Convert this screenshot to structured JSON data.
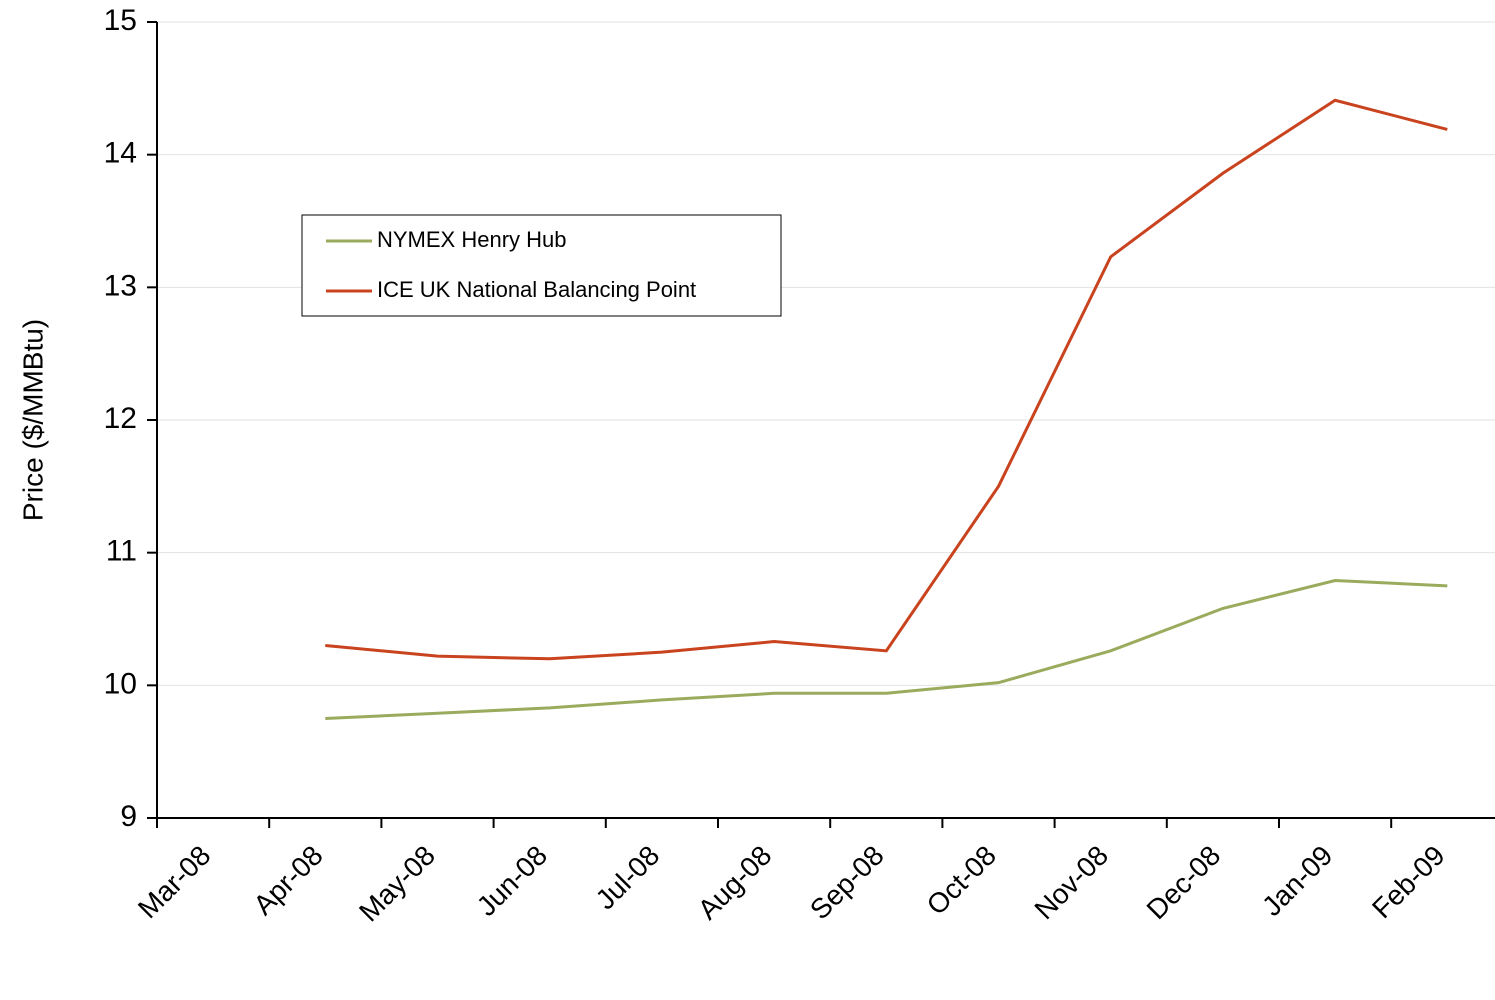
{
  "chart_data": {
    "type": "line",
    "y_label": "Price ($/MMBtu)",
    "categories": [
      "Mar-08",
      "Apr-08",
      "May-08",
      "Jun-08",
      "Jul-08",
      "Aug-08",
      "Sep-08",
      "Oct-08",
      "Nov-08",
      "Dec-08",
      "Jan-09",
      "Feb-09"
    ],
    "series": [
      {
        "name": "NYMEX Henry Hub",
        "color": "#9bab5d",
        "values": [
          null,
          9.75,
          9.79,
          9.83,
          9.89,
          9.94,
          9.94,
          10.02,
          10.26,
          10.58,
          10.79,
          10.75
        ]
      },
      {
        "name": "ICE UK National Balancing Point",
        "color": "#c8431e",
        "values": [
          null,
          10.3,
          10.22,
          10.2,
          10.25,
          10.33,
          10.26,
          11.5,
          13.23,
          13.86,
          14.41,
          14.19
        ]
      }
    ],
    "ylim": [
      9,
      15
    ],
    "yticks": [
      9,
      10,
      11,
      12,
      13,
      14,
      15
    ],
    "grid": true,
    "legend": "upper-left"
  }
}
